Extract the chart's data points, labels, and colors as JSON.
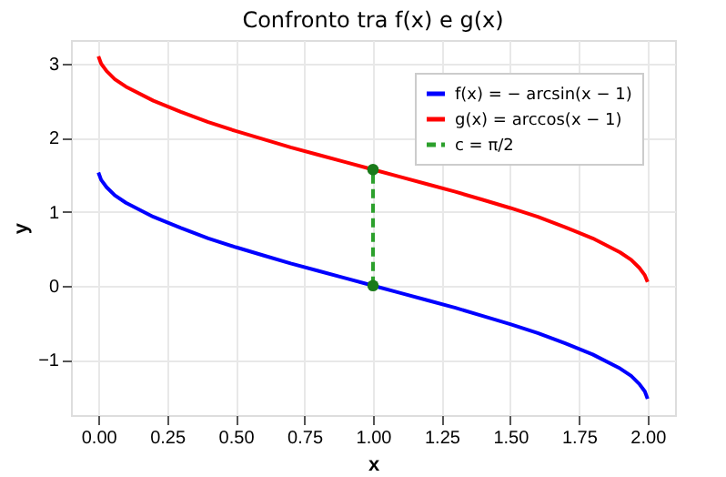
{
  "chart_data": {
    "type": "line",
    "title": "Confronto tra f(x) e g(x)",
    "xlabel": "x",
    "ylabel": "y",
    "xlim": [
      -0.1,
      2.1
    ],
    "xticks": [
      {
        "value": 0,
        "label": "0.00"
      },
      {
        "value": 0.25,
        "label": "0.25"
      },
      {
        "value": 0.5,
        "label": "0.50"
      },
      {
        "value": 0.75,
        "label": "0.75"
      },
      {
        "value": 1,
        "label": "1.00"
      },
      {
        "value": 1.25,
        "label": "1.25"
      },
      {
        "value": 1.5,
        "label": "1.50"
      },
      {
        "value": 1.75,
        "label": "1.75"
      },
      {
        "value": 2,
        "label": "2.00"
      }
    ],
    "ylim": [
      -1.75,
      3.32
    ],
    "yticks": [
      -1,
      0,
      1,
      2,
      3
    ],
    "grid": true,
    "legend": "top right",
    "series": [
      {
        "name": "f(x) = − arcsin(x − 1)",
        "color": "#0000ff",
        "line_style": "solid",
        "x": [
          0,
          0.01,
          0.03,
          0.06,
          0.1,
          0.2,
          0.3,
          0.4,
          0.5,
          0.6,
          0.7,
          0.8,
          0.9,
          1.0,
          1.1,
          1.2,
          1.3,
          1.4,
          1.5,
          1.6,
          1.7,
          1.8,
          1.9,
          1.94,
          1.97,
          1.99,
          2.0
        ],
        "values": [
          1.53,
          1.43,
          1.33,
          1.22,
          1.12,
          0.93,
          0.78,
          0.64,
          0.52,
          0.41,
          0.3,
          0.2,
          0.1,
          0,
          -0.1,
          -0.2,
          -0.3,
          -0.41,
          -0.52,
          -0.64,
          -0.78,
          -0.93,
          -1.12,
          -1.22,
          -1.33,
          -1.43,
          -1.53
        ]
      },
      {
        "name": "g(x) = arccos(x − 1)",
        "color": "#ff0000",
        "line_style": "solid",
        "x": [
          0,
          0.01,
          0.03,
          0.06,
          0.1,
          0.2,
          0.3,
          0.4,
          0.5,
          0.6,
          0.7,
          0.8,
          0.9,
          1.0,
          1.1,
          1.2,
          1.3,
          1.4,
          1.5,
          1.6,
          1.7,
          1.8,
          1.9,
          1.94,
          1.97,
          1.99,
          2.0
        ],
        "values": [
          3.1,
          3.0,
          2.9,
          2.79,
          2.69,
          2.5,
          2.35,
          2.21,
          2.09,
          1.98,
          1.87,
          1.77,
          1.67,
          1.57,
          1.47,
          1.37,
          1.27,
          1.16,
          1.05,
          0.93,
          0.79,
          0.64,
          0.45,
          0.35,
          0.24,
          0.14,
          0.05
        ]
      },
      {
        "name": "c = π/2",
        "color": "#2ca02c",
        "line_style": "dashed",
        "x": [
          1,
          1
        ],
        "values": [
          0,
          1.57
        ]
      },
      {
        "type": "scatter",
        "marker": "circle",
        "color": "#1a7a1a",
        "x": [
          1,
          1
        ],
        "values": [
          0,
          1.57
        ]
      }
    ]
  }
}
